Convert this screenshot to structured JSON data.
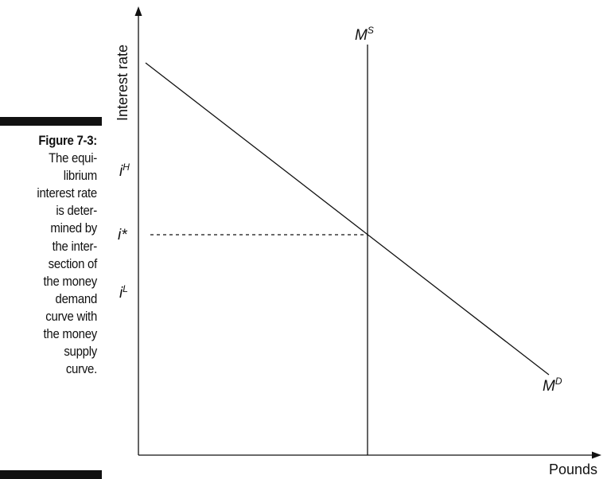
{
  "caption": {
    "figure_label": "Figure 7-3:",
    "text": "The equi-\nlibrium\ninterest rate\nis deter-\nmined by\nthe inter-\nsection of\nthe money\ndemand\ncurve with\nthe money\nsupply\ncurve."
  },
  "diagram": {
    "y_axis_label": "Interest rate",
    "x_axis_label": "Pounds",
    "supply_curve": {
      "base": "M",
      "sup": "S"
    },
    "demand_curve": {
      "base": "M",
      "sup": "D"
    },
    "rate_high": {
      "base": "i",
      "sup": "H"
    },
    "rate_equilibrium": "i*",
    "rate_low": {
      "base": "i",
      "sup": "L"
    }
  },
  "colors": {
    "ink": "#111111",
    "background": "#ffffff"
  }
}
